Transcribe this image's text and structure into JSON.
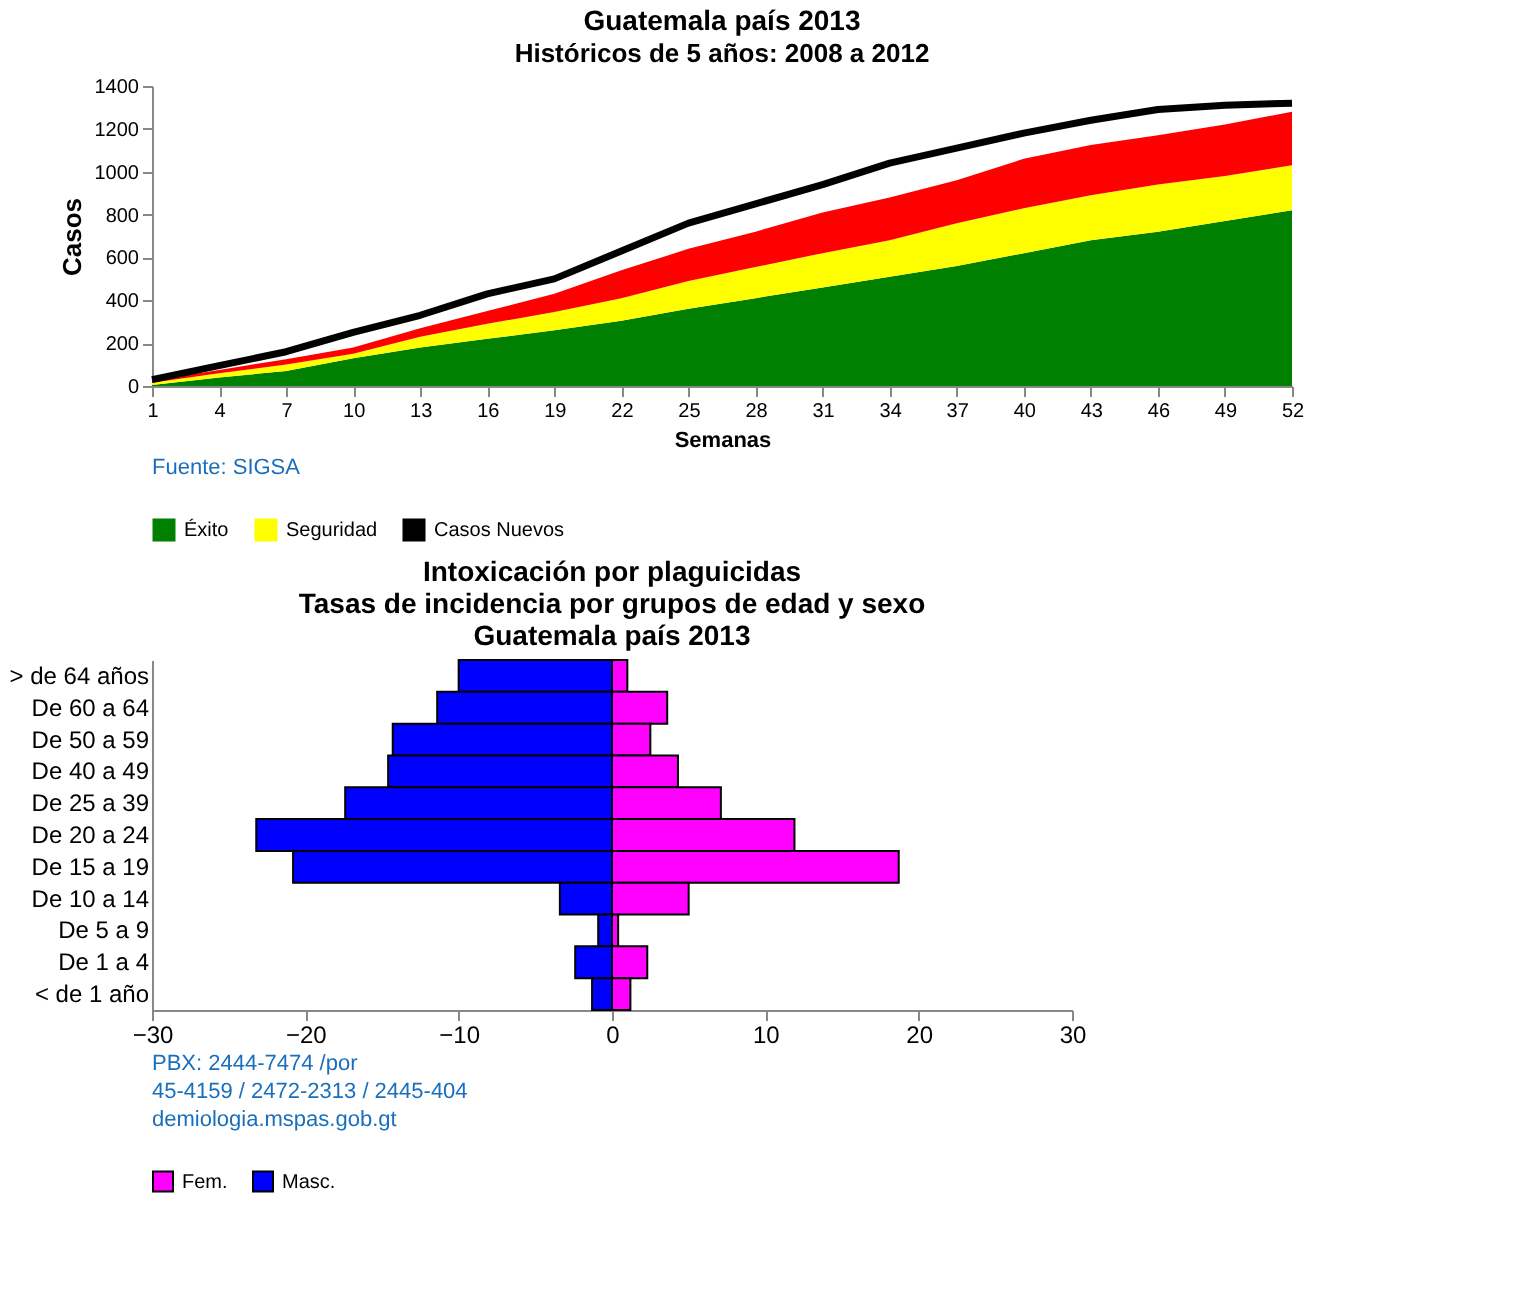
{
  "chart_data": [
    {
      "type": "area",
      "stacked": true,
      "title": "Guatemala país 2013",
      "subtitle": "Históricos de 5 años: 2008 a 2012",
      "xlabel": "Semanas",
      "ylabel": "Casos",
      "x": [
        1,
        4,
        7,
        10,
        13,
        16,
        19,
        22,
        25,
        28,
        31,
        34,
        37,
        40,
        43,
        46,
        49,
        52
      ],
      "xlim": [
        1,
        52
      ],
      "xticks": [
        1,
        4,
        7,
        10,
        13,
        16,
        19,
        22,
        25,
        28,
        31,
        34,
        37,
        40,
        43,
        46,
        49,
        52
      ],
      "ylim": [
        0,
        1400
      ],
      "yticks": [
        0,
        200,
        400,
        600,
        800,
        1000,
        1200,
        1400
      ],
      "grid": false,
      "legend": "bottom",
      "series": [
        {
          "name": "Éxito",
          "color": "#008000",
          "values": [
            5,
            40,
            70,
            130,
            180,
            220,
            260,
            305,
            360,
            410,
            460,
            510,
            560,
            620,
            680,
            720,
            770,
            820
          ]
        },
        {
          "name": "Seguridad",
          "color": "#ffff00",
          "values": [
            10,
            20,
            30,
            20,
            50,
            70,
            85,
            105,
            130,
            145,
            160,
            170,
            200,
            210,
            210,
            220,
            210,
            210
          ]
        },
        {
          "color": "#ff0000",
          "values": [
            10,
            15,
            25,
            30,
            40,
            60,
            85,
            130,
            150,
            165,
            190,
            200,
            200,
            230,
            235,
            230,
            240,
            250
          ]
        },
        {
          "name": "Casos Nuevos",
          "type": "line",
          "color": "#000000",
          "values": [
            30,
            95,
            160,
            250,
            330,
            430,
            500,
            630,
            760,
            850,
            940,
            1040,
            1110,
            1180,
            1240,
            1290,
            1310,
            1320
          ]
        }
      ],
      "annotations": [
        "Fuente: SIGSA"
      ]
    },
    {
      "type": "bar",
      "orientation": "horizontal",
      "stacked": true,
      "title": "Intoxicación por plaguicidas\nTasas de incidencia por grupos de edad y sexo\nGuatemala país 2013",
      "categories": [
        "> de 64 años",
        "De 60 a 64",
        "De 50 a 59",
        "De 40 a 49",
        "De 25 a 39",
        "De 20 a 24",
        "De 15 a 19",
        "De 10 a 14",
        "De 5 a 9",
        "De 1 a 4",
        "< de 1 año"
      ],
      "xlim": [
        -30,
        30
      ],
      "xticks": [
        -30,
        -20,
        -10,
        0,
        10,
        20,
        30
      ],
      "grid": false,
      "legend": "bottom",
      "series": [
        {
          "name": "Fem.",
          "color": "#ff00ff",
          "values": [
            1.0,
            3.6,
            2.5,
            4.3,
            7.1,
            11.9,
            18.7,
            5.0,
            0.4,
            2.3,
            1.2
          ]
        },
        {
          "name": "Masc.",
          "color": "#0000ff",
          "values": [
            -10.0,
            -11.4,
            -14.3,
            -14.6,
            -17.4,
            -23.2,
            -20.8,
            -3.4,
            -0.9,
            -2.4,
            -1.3
          ]
        }
      ],
      "annotations": [
        "PBX: 2444-7474 /por",
        "45-4159 / 2472-2313 / 2445-404",
        "demiologia.mspas.gob.gt"
      ]
    }
  ]
}
